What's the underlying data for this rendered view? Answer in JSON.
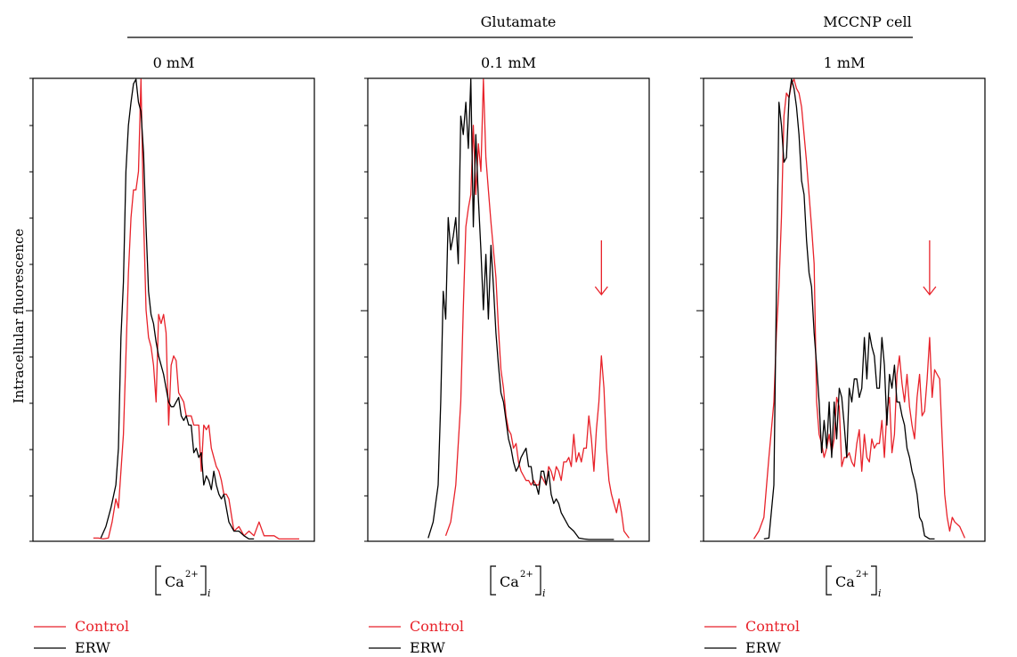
{
  "header": {
    "title": "Glutamate",
    "cell_line": "MCCNP cell"
  },
  "colors": {
    "control": "#e8222a",
    "erw": "#000000"
  },
  "chart_data": [
    {
      "type": "line",
      "title": "0 mM",
      "xlabel": "[Ca2+]i",
      "ylabel": "Intracellular fluorescence",
      "xlim": [
        0,
        100
      ],
      "ylim": [
        0,
        100
      ],
      "grid": false,
      "annotations": [],
      "series": [
        {
          "name": "Control",
          "color": "#e8222a",
          "x": [
            18,
            20,
            22,
            24,
            25.5,
            27,
            28,
            30,
            31,
            32,
            33,
            34,
            35,
            36,
            37,
            38,
            39,
            40,
            41,
            42,
            43,
            44,
            45,
            46,
            47,
            48,
            49,
            50,
            51,
            52,
            53,
            54,
            55,
            56,
            57,
            58,
            59,
            60,
            61,
            62,
            63,
            64,
            65,
            66,
            67,
            68,
            69,
            70,
            71,
            72,
            74,
            76,
            78,
            80,
            82,
            84,
            86,
            88,
            90,
            92,
            94,
            97,
            100
          ],
          "y": [
            0.5,
            0.5,
            0.3,
            0.5,
            4,
            9,
            7,
            23,
            40,
            58,
            70,
            76,
            76,
            80,
            100,
            70,
            50,
            44,
            42,
            38,
            30,
            49,
            47,
            49,
            45,
            25,
            38,
            40,
            39,
            32,
            31,
            30,
            27,
            27,
            27,
            25,
            25,
            25,
            15,
            25,
            24,
            25,
            20,
            18,
            16,
            15,
            13,
            10,
            10,
            9,
            2,
            3,
            1,
            2,
            1,
            4,
            1,
            1,
            1,
            0.3,
            0.3,
            0.3,
            0.3
          ]
        },
        {
          "name": "ERW",
          "color": "#000000",
          "x": [
            21,
            23,
            25,
            27,
            28,
            29,
            30,
            31,
            32,
            33,
            34,
            35,
            36,
            37,
            38,
            39,
            40,
            41,
            42,
            43,
            44,
            45,
            46,
            47,
            48,
            49,
            50,
            51,
            52,
            53,
            54,
            55,
            56,
            57,
            58,
            59,
            60,
            61,
            62,
            63,
            64,
            65,
            66,
            67,
            68,
            69,
            70,
            72,
            74,
            76,
            78,
            80,
            82
          ],
          "y": [
            0.5,
            3,
            7,
            12,
            20,
            44,
            56,
            80,
            90,
            95,
            99,
            100,
            95,
            93,
            84,
            68,
            54,
            49,
            47,
            43,
            40,
            38,
            36,
            33,
            30,
            29,
            29,
            30,
            31,
            27,
            26,
            27,
            25,
            25,
            19,
            20,
            18,
            19,
            12,
            14,
            13,
            11,
            15,
            12,
            10,
            9,
            10,
            4,
            2,
            2,
            1,
            0.3,
            0.3
          ]
        }
      ]
    },
    {
      "type": "line",
      "title": "0.1 mM",
      "xlabel": "[Ca2+]i",
      "ylabel": "",
      "xlim": [
        0,
        100
      ],
      "ylim": [
        0,
        100
      ],
      "grid": false,
      "annotations": [
        {
          "type": "arrow",
          "x": 87,
          "color": "#e8222a"
        }
      ],
      "series": [
        {
          "name": "Control",
          "color": "#e8222a",
          "x": [
            25,
            27,
            29,
            31,
            32,
            33,
            34,
            35,
            36,
            37,
            38,
            39,
            40,
            41,
            42,
            43,
            44,
            45,
            46,
            47,
            48,
            49,
            50,
            51,
            52,
            53,
            54,
            55,
            56,
            57,
            58,
            59,
            60,
            61,
            62,
            63,
            64,
            65,
            66,
            67,
            68,
            69,
            70,
            71,
            72,
            73,
            74,
            75,
            76,
            77,
            78,
            79,
            80,
            81,
            82,
            83,
            84,
            85,
            86,
            87,
            88,
            89,
            90,
            91,
            92,
            93,
            94,
            95,
            96,
            98
          ],
          "y": [
            1,
            4,
            12,
            30,
            50,
            68,
            72,
            75,
            90,
            75,
            86,
            80,
            100,
            83,
            76,
            69,
            63,
            57,
            46,
            37,
            33,
            27,
            24,
            23,
            20,
            21,
            17,
            15,
            14,
            13,
            13,
            12,
            13,
            12,
            12,
            14,
            13,
            12,
            16,
            15,
            13,
            16,
            15,
            13,
            17,
            17,
            18,
            16,
            23,
            17,
            19,
            17,
            20,
            20,
            27,
            22,
            15,
            24,
            30,
            40,
            33,
            20,
            13,
            10,
            8,
            6,
            9,
            6,
            2,
            0.5
          ]
        },
        {
          "name": "ERW",
          "color": "#000000",
          "x": [
            18,
            20,
            22,
            23,
            24,
            25,
            26,
            27,
            28,
            29,
            30,
            31,
            32,
            33,
            34,
            35,
            36,
            37,
            38,
            39,
            40,
            41,
            42,
            43,
            44,
            45,
            46,
            47,
            48,
            49,
            50,
            51,
            52,
            53,
            54,
            55,
            56,
            57,
            58,
            59,
            60,
            61,
            62,
            63,
            64,
            65,
            66,
            67,
            68,
            69,
            70,
            71,
            72,
            74,
            76,
            78,
            80,
            82,
            84,
            86,
            88,
            90,
            92
          ],
          "y": [
            0.5,
            4,
            12,
            30,
            54,
            48,
            70,
            63,
            66,
            70,
            60,
            92,
            88,
            95,
            85,
            100,
            68,
            88,
            74,
            63,
            50,
            62,
            48,
            64,
            55,
            45,
            38,
            32,
            30,
            26,
            22,
            20,
            17,
            15,
            16,
            18,
            19,
            20,
            16,
            16,
            12,
            12,
            10,
            15,
            15,
            12,
            15,
            10,
            8,
            9,
            8,
            6,
            5,
            3,
            2,
            0.5,
            0.3,
            0.2,
            0.2,
            0.2,
            0.2,
            0.2,
            0.2
          ]
        }
      ]
    },
    {
      "type": "line",
      "title": "1 mM",
      "xlabel": "[Ca2+]i",
      "ylabel": "",
      "xlim": [
        0,
        100
      ],
      "ylim": [
        0,
        100
      ],
      "grid": false,
      "annotations": [
        {
          "type": "arrow",
          "x": 84,
          "color": "#e8222a"
        }
      ],
      "series": [
        {
          "name": "Control",
          "color": "#e8222a",
          "x": [
            14,
            16,
            18,
            20,
            22,
            23,
            24,
            25,
            26,
            27,
            28,
            29,
            30,
            31,
            32,
            33,
            34,
            35,
            36,
            37,
            38,
            39,
            40,
            41,
            42,
            43,
            44,
            45,
            46,
            47,
            48,
            49,
            50,
            51,
            52,
            53,
            54,
            55,
            56,
            57,
            58,
            59,
            60,
            61,
            62,
            63,
            64,
            65,
            66,
            67,
            68,
            69,
            70,
            71,
            72,
            73,
            74,
            75,
            76,
            77,
            78,
            79,
            80,
            81,
            82,
            83,
            84,
            85,
            86,
            87,
            88,
            89,
            90,
            91,
            92,
            93,
            94,
            96,
            98
          ],
          "y": [
            0.3,
            2,
            5,
            18,
            30,
            45,
            55,
            70,
            92,
            97,
            96,
            99,
            100,
            98,
            97,
            94,
            88,
            82,
            75,
            68,
            60,
            30,
            23,
            21,
            18,
            20,
            23,
            19,
            22,
            31,
            29,
            16,
            18,
            18,
            19,
            17,
            16,
            21,
            24,
            15,
            23,
            18,
            17,
            22,
            20,
            21,
            21,
            26,
            18,
            28,
            31,
            19,
            23,
            36,
            40,
            34,
            30,
            36,
            29,
            25,
            22,
            31,
            36,
            27,
            28,
            35,
            44,
            31,
            37,
            36,
            35,
            22,
            10,
            5,
            2,
            5,
            4,
            3,
            0.5
          ]
        },
        {
          "name": "ERW",
          "color": "#000000",
          "x": [
            18,
            20,
            22,
            23,
            24,
            25,
            26,
            27,
            28,
            29,
            30,
            31,
            32,
            33,
            34,
            35,
            36,
            37,
            38,
            39,
            40,
            41,
            42,
            43,
            44,
            45,
            46,
            47,
            48,
            49,
            50,
            51,
            52,
            53,
            54,
            55,
            56,
            57,
            58,
            59,
            60,
            61,
            62,
            63,
            64,
            65,
            66,
            67,
            68,
            69,
            70,
            71,
            72,
            73,
            74,
            75,
            76,
            77,
            78,
            79,
            80,
            81,
            82,
            84,
            86
          ],
          "y": [
            0.3,
            0.5,
            12,
            55,
            95,
            90,
            82,
            83,
            96,
            100,
            98,
            94,
            88,
            78,
            75,
            65,
            58,
            55,
            45,
            38,
            30,
            19,
            26,
            20,
            30,
            18,
            30,
            22,
            33,
            31,
            25,
            18,
            33,
            30,
            35,
            35,
            31,
            33,
            44,
            35,
            45,
            42,
            40,
            33,
            33,
            44,
            38,
            25,
            36,
            33,
            38,
            30,
            30,
            27,
            25,
            20,
            18,
            15,
            13,
            10,
            5,
            4,
            1,
            0.3,
            0.3
          ]
        }
      ]
    }
  ],
  "panels": [
    {
      "title": "0 mM",
      "legend": {
        "control": "Control",
        "erw": "ERW"
      }
    },
    {
      "title": "0.1 mM",
      "legend": {
        "control": "Control",
        "erw": "ERW"
      }
    },
    {
      "title": "1 mM",
      "legend": {
        "control": "Control",
        "erw": "ERW"
      }
    }
  ],
  "xlabel": {
    "base": "Ca",
    "sup": "2+",
    "sub": "i"
  },
  "ylabel": "Intracellular fluorescence"
}
